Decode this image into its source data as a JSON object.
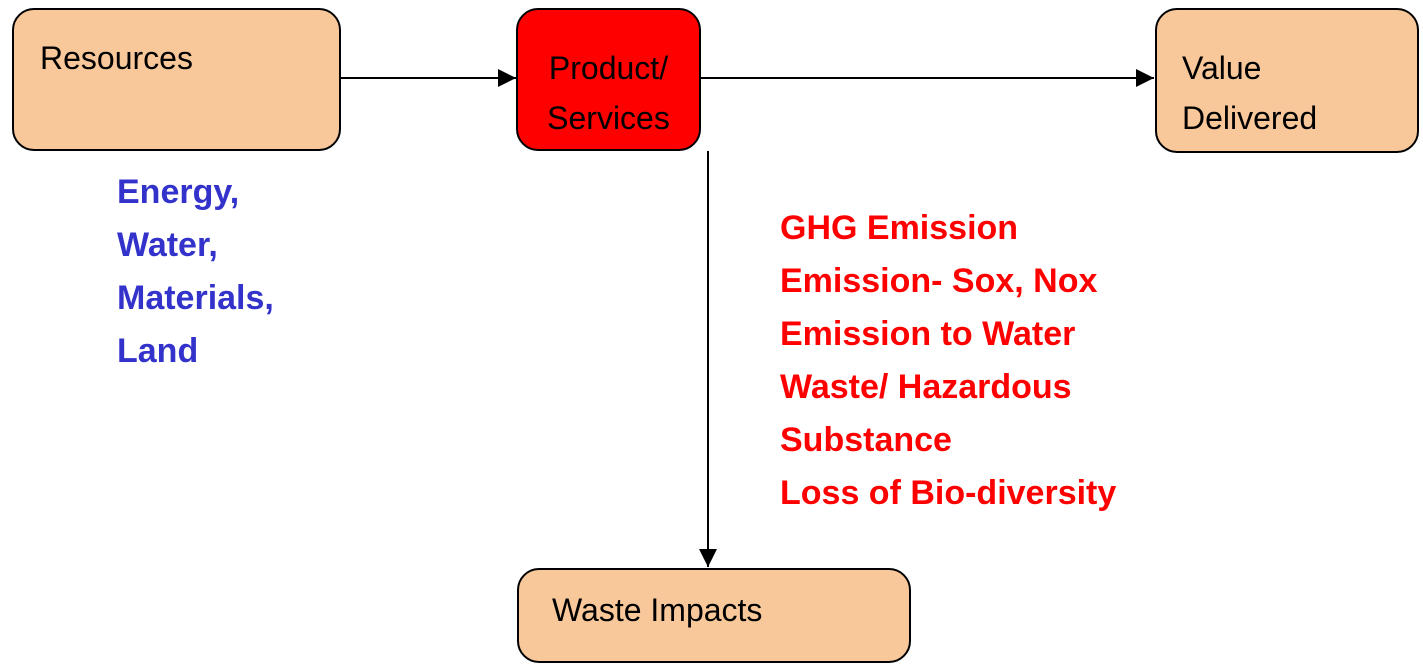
{
  "nodes": [
    {
      "label": [
        "Resources"
      ]
    },
    {
      "label": [
        "Product/",
        "Services"
      ]
    },
    {
      "label": [
        "Value",
        "Delivered"
      ]
    },
    {
      "label": [
        "Waste Impacts"
      ]
    }
  ],
  "resources_list": [
    "Energy,",
    "Water,",
    "Materials,",
    "Land"
  ],
  "impacts_list": [
    "GHG Emission",
    "Emission- Sox, Nox",
    "Emission to Water",
    "Waste/ Hazardous",
    "Substance",
    "Loss of Bio-diversity"
  ]
}
